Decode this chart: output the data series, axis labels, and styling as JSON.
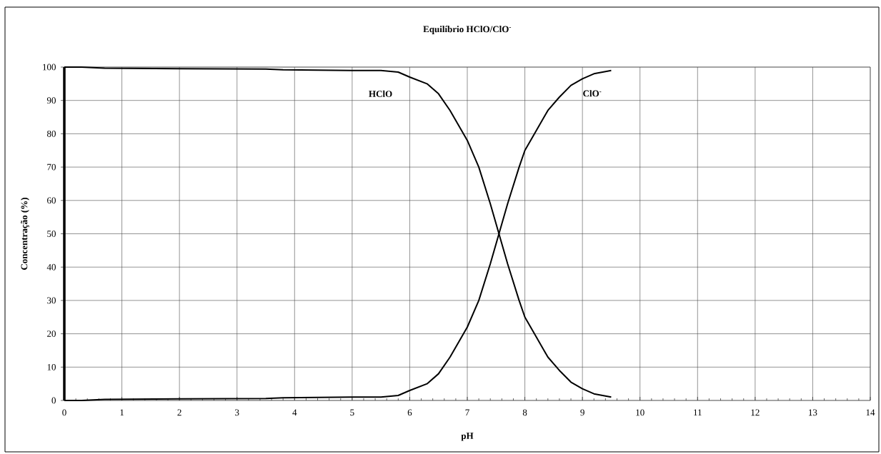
{
  "chart_data": {
    "type": "line",
    "title": "Equilíbrio HClO/ClO$^{-}$",
    "xlabel": "pH",
    "ylabel": "Concentração (%)",
    "xlim": [
      0,
      14
    ],
    "ylim": [
      0,
      100
    ],
    "xticks": [
      0,
      1,
      2,
      3,
      4,
      5,
      6,
      7,
      8,
      9,
      10,
      11,
      12,
      13,
      14
    ],
    "yticks": [
      0,
      10,
      20,
      30,
      40,
      50,
      60,
      70,
      80,
      90,
      100
    ],
    "grid": true,
    "marker": "none",
    "line_style": "solid",
    "series": [
      {
        "name": "HClO",
        "color": "#000000",
        "x": [
          0,
          0.3,
          0.7,
          2,
          3.5,
          3.8,
          5,
          5.5,
          5.8,
          6,
          6.3,
          6.5,
          6.7,
          6.9,
          7,
          7.2,
          7.4,
          7.55,
          7.7,
          7.9,
          8,
          8.2,
          8.4,
          8.6,
          8.8,
          9,
          9.2,
          9.5
        ],
        "values": [
          100,
          100,
          99.7,
          99.5,
          99.4,
          99.2,
          99,
          99,
          98.5,
          97,
          95,
          92,
          87,
          81,
          78,
          70,
          59,
          50,
          41,
          30,
          25,
          19,
          13,
          9,
          5.5,
          3.5,
          2,
          1
        ]
      },
      {
        "name": "ClO$^{-}$",
        "color": "#000000",
        "x": [
          0,
          0.3,
          0.7,
          2,
          3.5,
          3.8,
          5,
          5.5,
          5.8,
          6,
          6.3,
          6.5,
          6.7,
          6.9,
          7,
          7.2,
          7.4,
          7.55,
          7.7,
          7.9,
          8,
          8.2,
          8.4,
          8.6,
          8.8,
          9,
          9.2,
          9.5
        ],
        "values": [
          0,
          0,
          0.3,
          0.5,
          0.6,
          0.8,
          1,
          1,
          1.5,
          3,
          5,
          8,
          13,
          19,
          22,
          30,
          41,
          50,
          59,
          70,
          75,
          81,
          87,
          91,
          94.5,
          96.5,
          98,
          99
        ]
      }
    ]
  }
}
